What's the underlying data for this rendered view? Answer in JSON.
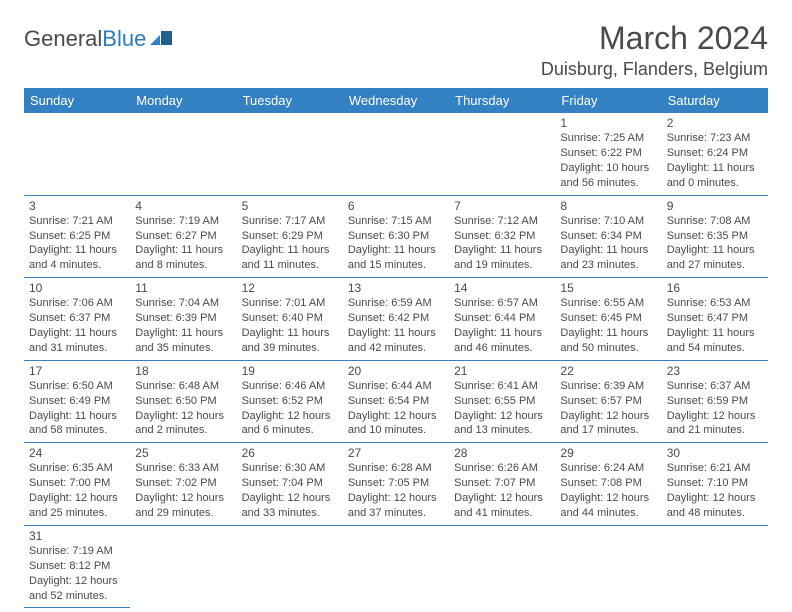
{
  "logo": {
    "text1": "General",
    "text2": "Blue"
  },
  "title": "March 2024",
  "location": "Duisburg, Flanders, Belgium",
  "colors": {
    "header_bg": "#3380c2",
    "header_fg": "#ffffff",
    "text": "#4a4a4a",
    "border": "#3380c2"
  },
  "days": [
    "Sunday",
    "Monday",
    "Tuesday",
    "Wednesday",
    "Thursday",
    "Friday",
    "Saturday"
  ],
  "weeks": [
    [
      null,
      null,
      null,
      null,
      null,
      {
        "n": "1",
        "sr": "7:25 AM",
        "ss": "6:22 PM",
        "dl": "10 hours and 56 minutes."
      },
      {
        "n": "2",
        "sr": "7:23 AM",
        "ss": "6:24 PM",
        "dl": "11 hours and 0 minutes."
      }
    ],
    [
      {
        "n": "3",
        "sr": "7:21 AM",
        "ss": "6:25 PM",
        "dl": "11 hours and 4 minutes."
      },
      {
        "n": "4",
        "sr": "7:19 AM",
        "ss": "6:27 PM",
        "dl": "11 hours and 8 minutes."
      },
      {
        "n": "5",
        "sr": "7:17 AM",
        "ss": "6:29 PM",
        "dl": "11 hours and 11 minutes."
      },
      {
        "n": "6",
        "sr": "7:15 AM",
        "ss": "6:30 PM",
        "dl": "11 hours and 15 minutes."
      },
      {
        "n": "7",
        "sr": "7:12 AM",
        "ss": "6:32 PM",
        "dl": "11 hours and 19 minutes."
      },
      {
        "n": "8",
        "sr": "7:10 AM",
        "ss": "6:34 PM",
        "dl": "11 hours and 23 minutes."
      },
      {
        "n": "9",
        "sr": "7:08 AM",
        "ss": "6:35 PM",
        "dl": "11 hours and 27 minutes."
      }
    ],
    [
      {
        "n": "10",
        "sr": "7:06 AM",
        "ss": "6:37 PM",
        "dl": "11 hours and 31 minutes."
      },
      {
        "n": "11",
        "sr": "7:04 AM",
        "ss": "6:39 PM",
        "dl": "11 hours and 35 minutes."
      },
      {
        "n": "12",
        "sr": "7:01 AM",
        "ss": "6:40 PM",
        "dl": "11 hours and 39 minutes."
      },
      {
        "n": "13",
        "sr": "6:59 AM",
        "ss": "6:42 PM",
        "dl": "11 hours and 42 minutes."
      },
      {
        "n": "14",
        "sr": "6:57 AM",
        "ss": "6:44 PM",
        "dl": "11 hours and 46 minutes."
      },
      {
        "n": "15",
        "sr": "6:55 AM",
        "ss": "6:45 PM",
        "dl": "11 hours and 50 minutes."
      },
      {
        "n": "16",
        "sr": "6:53 AM",
        "ss": "6:47 PM",
        "dl": "11 hours and 54 minutes."
      }
    ],
    [
      {
        "n": "17",
        "sr": "6:50 AM",
        "ss": "6:49 PM",
        "dl": "11 hours and 58 minutes."
      },
      {
        "n": "18",
        "sr": "6:48 AM",
        "ss": "6:50 PM",
        "dl": "12 hours and 2 minutes."
      },
      {
        "n": "19",
        "sr": "6:46 AM",
        "ss": "6:52 PM",
        "dl": "12 hours and 6 minutes."
      },
      {
        "n": "20",
        "sr": "6:44 AM",
        "ss": "6:54 PM",
        "dl": "12 hours and 10 minutes."
      },
      {
        "n": "21",
        "sr": "6:41 AM",
        "ss": "6:55 PM",
        "dl": "12 hours and 13 minutes."
      },
      {
        "n": "22",
        "sr": "6:39 AM",
        "ss": "6:57 PM",
        "dl": "12 hours and 17 minutes."
      },
      {
        "n": "23",
        "sr": "6:37 AM",
        "ss": "6:59 PM",
        "dl": "12 hours and 21 minutes."
      }
    ],
    [
      {
        "n": "24",
        "sr": "6:35 AM",
        "ss": "7:00 PM",
        "dl": "12 hours and 25 minutes."
      },
      {
        "n": "25",
        "sr": "6:33 AM",
        "ss": "7:02 PM",
        "dl": "12 hours and 29 minutes."
      },
      {
        "n": "26",
        "sr": "6:30 AM",
        "ss": "7:04 PM",
        "dl": "12 hours and 33 minutes."
      },
      {
        "n": "27",
        "sr": "6:28 AM",
        "ss": "7:05 PM",
        "dl": "12 hours and 37 minutes."
      },
      {
        "n": "28",
        "sr": "6:26 AM",
        "ss": "7:07 PM",
        "dl": "12 hours and 41 minutes."
      },
      {
        "n": "29",
        "sr": "6:24 AM",
        "ss": "7:08 PM",
        "dl": "12 hours and 44 minutes."
      },
      {
        "n": "30",
        "sr": "6:21 AM",
        "ss": "7:10 PM",
        "dl": "12 hours and 48 minutes."
      }
    ],
    [
      {
        "n": "31",
        "sr": "7:19 AM",
        "ss": "8:12 PM",
        "dl": "12 hours and 52 minutes."
      },
      null,
      null,
      null,
      null,
      null,
      null
    ]
  ],
  "labels": {
    "sunrise": "Sunrise:",
    "sunset": "Sunset:",
    "daylight": "Daylight:"
  }
}
